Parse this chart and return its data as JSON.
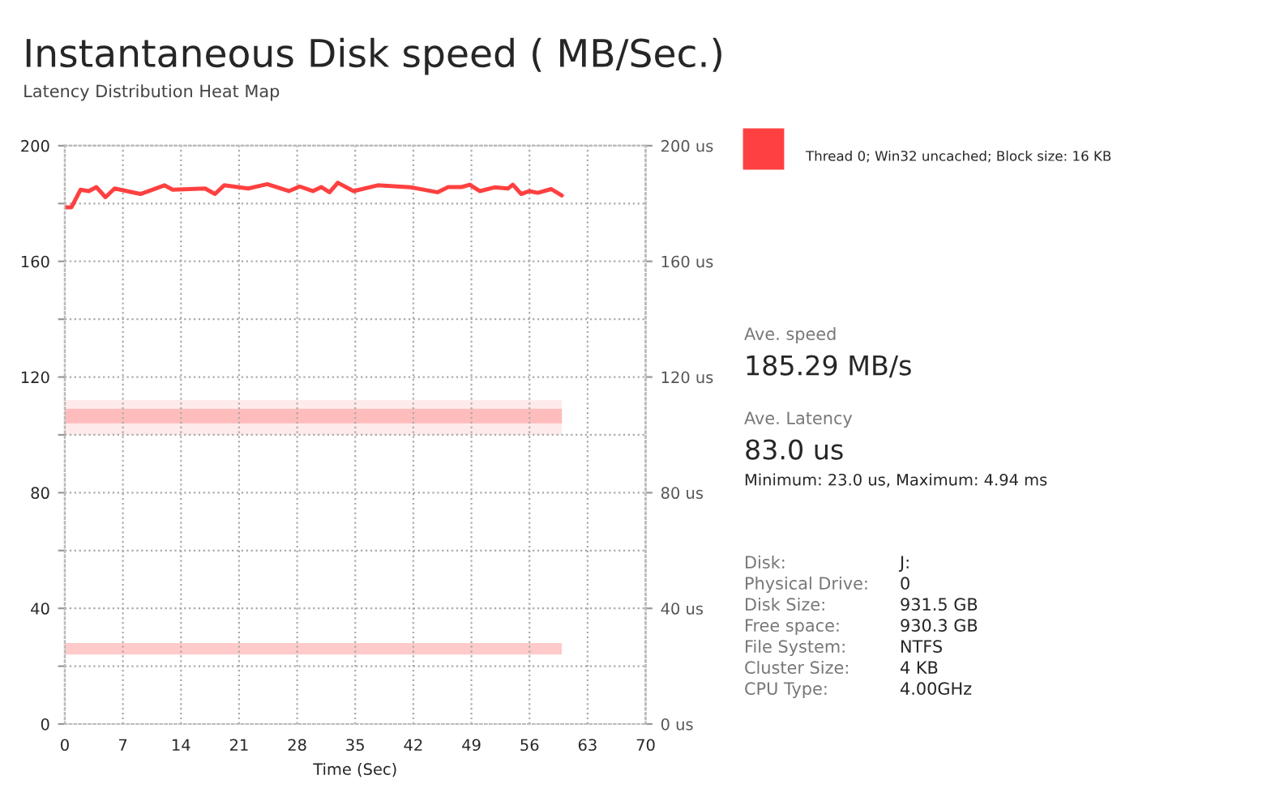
{
  "chart_data": {
    "type": "line",
    "title": "Instantaneous Disk speed ( MB/Sec.)",
    "subtitle": "Latency Distribution Heat Map",
    "xlabel": "Time (Sec)",
    "x": [
      0,
      0.8,
      1.9,
      2.9,
      3.8,
      4.9,
      6.0,
      9.1,
      10.4,
      12.0,
      13.0,
      16.9,
      18.1,
      19.2,
      22.1,
      24.4,
      27.0,
      28.3,
      29.9,
      30.9,
      31.9,
      32.9,
      34.8,
      37.7,
      41.7,
      44.9,
      46.2,
      47.8,
      48.8,
      50.0,
      51.8,
      53.4,
      54.0,
      55.0,
      56.0,
      57.0,
      58.6,
      59.9
    ],
    "series": [
      {
        "color": "#ff4040",
        "values": [
          178.7,
          178.7,
          184.8,
          184.3,
          185.7,
          182.2,
          185.2,
          183.3,
          184.6,
          186.3,
          184.8,
          185.2,
          183.3,
          186.3,
          185.2,
          186.7,
          184.3,
          185.9,
          184.3,
          185.7,
          183.9,
          187.2,
          184.3,
          186.3,
          185.6,
          183.9,
          185.7,
          185.7,
          186.5,
          184.3,
          185.6,
          185.2,
          186.5,
          183.3,
          184.3,
          183.7,
          185.0,
          182.8
        ]
      }
    ],
    "xlim": [
      0,
      70
    ],
    "xticks": [
      0,
      7,
      14,
      21,
      28,
      35,
      42,
      49,
      56,
      63,
      70
    ],
    "ylim": [
      0,
      200
    ],
    "yticks": [
      0,
      {
        "value": 20,
        "label": null
      },
      40,
      {
        "value": 60,
        "label": null
      },
      80,
      {
        "value": 100,
        "label": null
      },
      120,
      {
        "value": 140,
        "label": null
      },
      160,
      {
        "value": 180,
        "label": null
      },
      200
    ],
    "y2lim": [
      0,
      200
    ],
    "y2ticks": [
      {
        "value": 0,
        "label": "0 us"
      },
      {
        "value": 40,
        "label": "40 us"
      },
      {
        "value": 80,
        "label": "80 us"
      },
      {
        "value": 120,
        "label": "120 us"
      },
      {
        "value": 160,
        "label": "160 us"
      },
      {
        "value": 200,
        "label": "200 us"
      }
    ],
    "bands": [
      {
        "axis": "y2",
        "from": 100,
        "to": 112,
        "color": "#ffeaea"
      },
      {
        "axis": "y2",
        "from": 104,
        "to": 109,
        "color": "#ffbcbc"
      },
      {
        "axis": "y2",
        "from": 24,
        "to": 28,
        "color": "#ffcaca"
      }
    ],
    "grid": true,
    "marker": "none",
    "line_style": "solid",
    "annotations": [
      "Thread 0; Win32 uncached; Block size: 16 KB",
      "Ave. speed",
      "185.29 MB/s",
      "Ave. Latency",
      "83.0 us",
      "Minimum: 23.0 us, Maximum: 4.94 ms",
      "Disk:",
      "J:",
      "Physical Drive:",
      "0",
      "Disk Size:",
      "931.5 GB",
      "Free space:",
      "930.3 GB",
      "File System:",
      "NTFS",
      "Cluster Size:",
      "4 KB",
      "CPU Type:",
      "4.00GHz"
    ]
  }
}
